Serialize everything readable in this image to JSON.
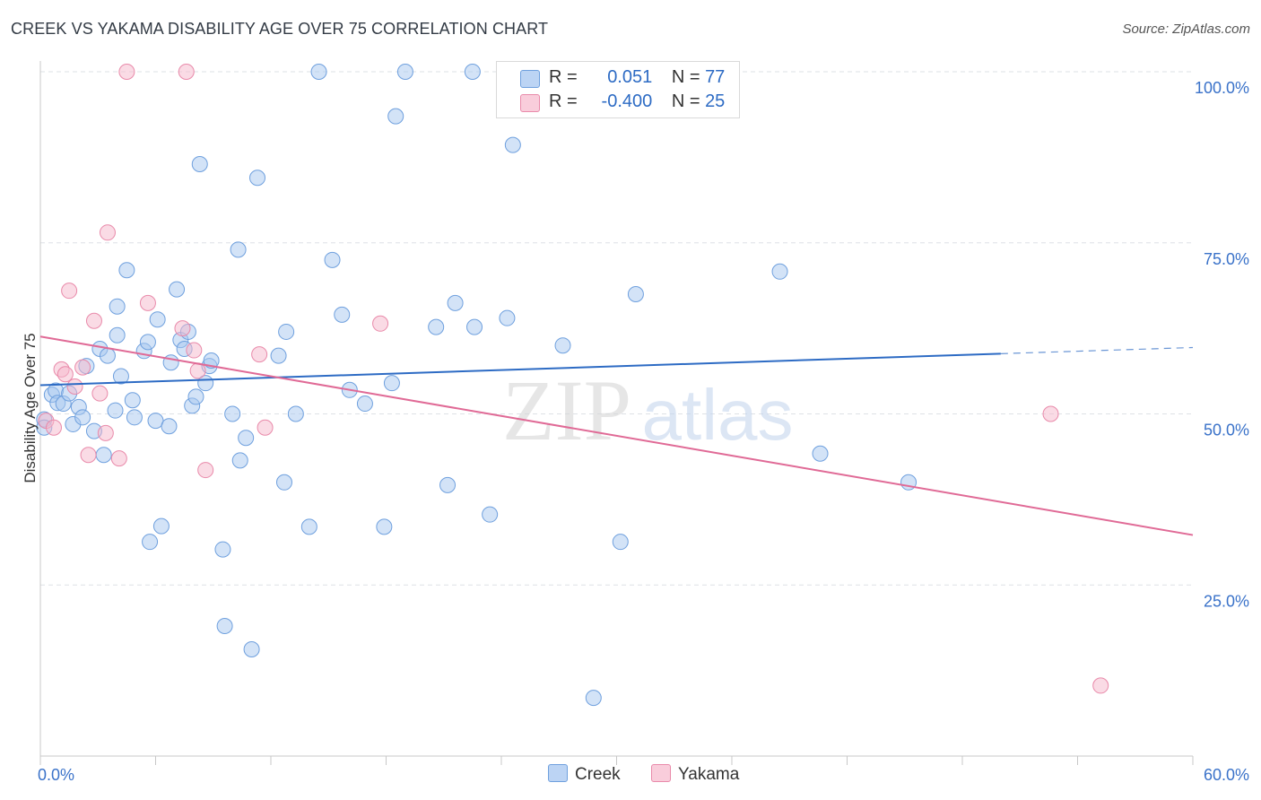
{
  "title": "CREEK VS YAKAMA DISABILITY AGE OVER 75 CORRELATION CHART",
  "source": "Source: ZipAtlas.com",
  "watermark": {
    "zip": "ZIP",
    "atlas": "atlas"
  },
  "legend_stats": [
    {
      "r_label": "R =",
      "r_value": "0.051",
      "n_label": "N =",
      "n_value": "77",
      "color": "#a8c8f0"
    },
    {
      "r_label": "R =",
      "r_value": "-0.400",
      "n_label": "N =",
      "n_value": "25",
      "color": "#f5b8cc"
    }
  ],
  "chart_data": {
    "type": "scatter",
    "title": "CREEK VS YAKAMA DISABILITY AGE OVER 75 CORRELATION CHART",
    "xlabel": "",
    "ylabel": "Disability Age Over 75",
    "xlim": [
      0,
      60
    ],
    "ylim": [
      0,
      100
    ],
    "x_tick_labels": [
      "0.0%",
      "60.0%"
    ],
    "y_tick_labels": [
      {
        "value": 100,
        "label": "100.0%"
      },
      {
        "value": 75,
        "label": "75.0%"
      },
      {
        "value": 50,
        "label": "50.0%"
      },
      {
        "value": 25,
        "label": "25.0%"
      }
    ],
    "grid": "horizontal dashed",
    "legend_position": "bottom-center",
    "series": [
      {
        "name": "Creek",
        "color": "#a8c8f0",
        "stroke": "#6fa0de",
        "trend": {
          "x0": 0,
          "y0": 54.2,
          "x1": 50,
          "y1": 58.8,
          "dash_to_x": 60,
          "dash_to_y": 59.7,
          "color": "#2d6bc4"
        },
        "points": [
          [
            0.2,
            49.2
          ],
          [
            0.6,
            52.8
          ],
          [
            0.8,
            53.4
          ],
          [
            0.9,
            51.6
          ],
          [
            1.2,
            51.5
          ],
          [
            1.5,
            53.0
          ],
          [
            1.7,
            48.5
          ],
          [
            2.0,
            51.0
          ],
          [
            2.2,
            49.5
          ],
          [
            2.4,
            57.0
          ],
          [
            2.8,
            47.5
          ],
          [
            3.1,
            59.5
          ],
          [
            3.3,
            44.0
          ],
          [
            3.5,
            58.5
          ],
          [
            3.9,
            50.5
          ],
          [
            4.0,
            61.5
          ],
          [
            4.0,
            65.7
          ],
          [
            4.2,
            55.5
          ],
          [
            4.5,
            71.0
          ],
          [
            4.8,
            52.0
          ],
          [
            4.9,
            49.5
          ],
          [
            5.4,
            59.2
          ],
          [
            5.6,
            60.5
          ],
          [
            5.7,
            31.3
          ],
          [
            6.0,
            49.0
          ],
          [
            6.1,
            63.8
          ],
          [
            6.3,
            33.6
          ],
          [
            6.7,
            48.2
          ],
          [
            6.8,
            57.5
          ],
          [
            7.1,
            68.2
          ],
          [
            7.3,
            60.8
          ],
          [
            7.5,
            59.5
          ],
          [
            7.7,
            62.0
          ],
          [
            7.9,
            51.2
          ],
          [
            8.1,
            52.5
          ],
          [
            8.3,
            86.5
          ],
          [
            8.6,
            54.5
          ],
          [
            8.8,
            57.0
          ],
          [
            8.9,
            57.8
          ],
          [
            9.5,
            30.2
          ],
          [
            9.6,
            19.0
          ],
          [
            10.0,
            50.0
          ],
          [
            10.3,
            74.0
          ],
          [
            10.4,
            43.2
          ],
          [
            10.7,
            46.5
          ],
          [
            11.0,
            15.6
          ],
          [
            11.3,
            84.5
          ],
          [
            12.4,
            58.5
          ],
          [
            12.7,
            40.0
          ],
          [
            12.8,
            62.0
          ],
          [
            13.3,
            50.0
          ],
          [
            14.0,
            33.5
          ],
          [
            14.5,
            100.0
          ],
          [
            15.2,
            72.5
          ],
          [
            15.7,
            64.5
          ],
          [
            16.1,
            53.5
          ],
          [
            16.9,
            51.5
          ],
          [
            17.9,
            33.5
          ],
          [
            18.3,
            54.5
          ],
          [
            18.5,
            93.5
          ],
          [
            19.0,
            100.0
          ],
          [
            20.6,
            62.7
          ],
          [
            21.2,
            39.6
          ],
          [
            21.6,
            66.2
          ],
          [
            22.5,
            100.0
          ],
          [
            22.6,
            62.7
          ],
          [
            23.4,
            35.3
          ],
          [
            24.3,
            64.0
          ],
          [
            24.6,
            89.3
          ],
          [
            27.2,
            60.0
          ],
          [
            28.8,
            8.5
          ],
          [
            30.2,
            31.3
          ],
          [
            31.0,
            67.5
          ],
          [
            38.5,
            70.8
          ],
          [
            40.6,
            44.2
          ],
          [
            45.2,
            40.0
          ],
          [
            0.2,
            48.0
          ]
        ]
      },
      {
        "name": "Yakama",
        "color": "#f5b8cc",
        "stroke": "#e98aaa",
        "trend": {
          "x0": 0,
          "y0": 61.3,
          "x1": 60,
          "y1": 32.3,
          "color": "#e06a96"
        },
        "points": [
          [
            0.3,
            49.0
          ],
          [
            0.7,
            48.0
          ],
          [
            1.1,
            56.5
          ],
          [
            1.3,
            55.8
          ],
          [
            1.5,
            68.0
          ],
          [
            1.8,
            54.0
          ],
          [
            2.2,
            56.8
          ],
          [
            2.5,
            44.0
          ],
          [
            2.8,
            63.6
          ],
          [
            3.1,
            53.0
          ],
          [
            3.4,
            47.2
          ],
          [
            3.5,
            76.5
          ],
          [
            4.1,
            43.5
          ],
          [
            4.5,
            100.0
          ],
          [
            5.6,
            66.2
          ],
          [
            7.4,
            62.5
          ],
          [
            7.6,
            100.0
          ],
          [
            8.0,
            59.3
          ],
          [
            8.2,
            56.3
          ],
          [
            8.6,
            41.8
          ],
          [
            11.4,
            58.7
          ],
          [
            11.7,
            48.0
          ],
          [
            17.7,
            63.2
          ],
          [
            52.6,
            50.0
          ],
          [
            55.2,
            10.3
          ]
        ]
      }
    ]
  }
}
